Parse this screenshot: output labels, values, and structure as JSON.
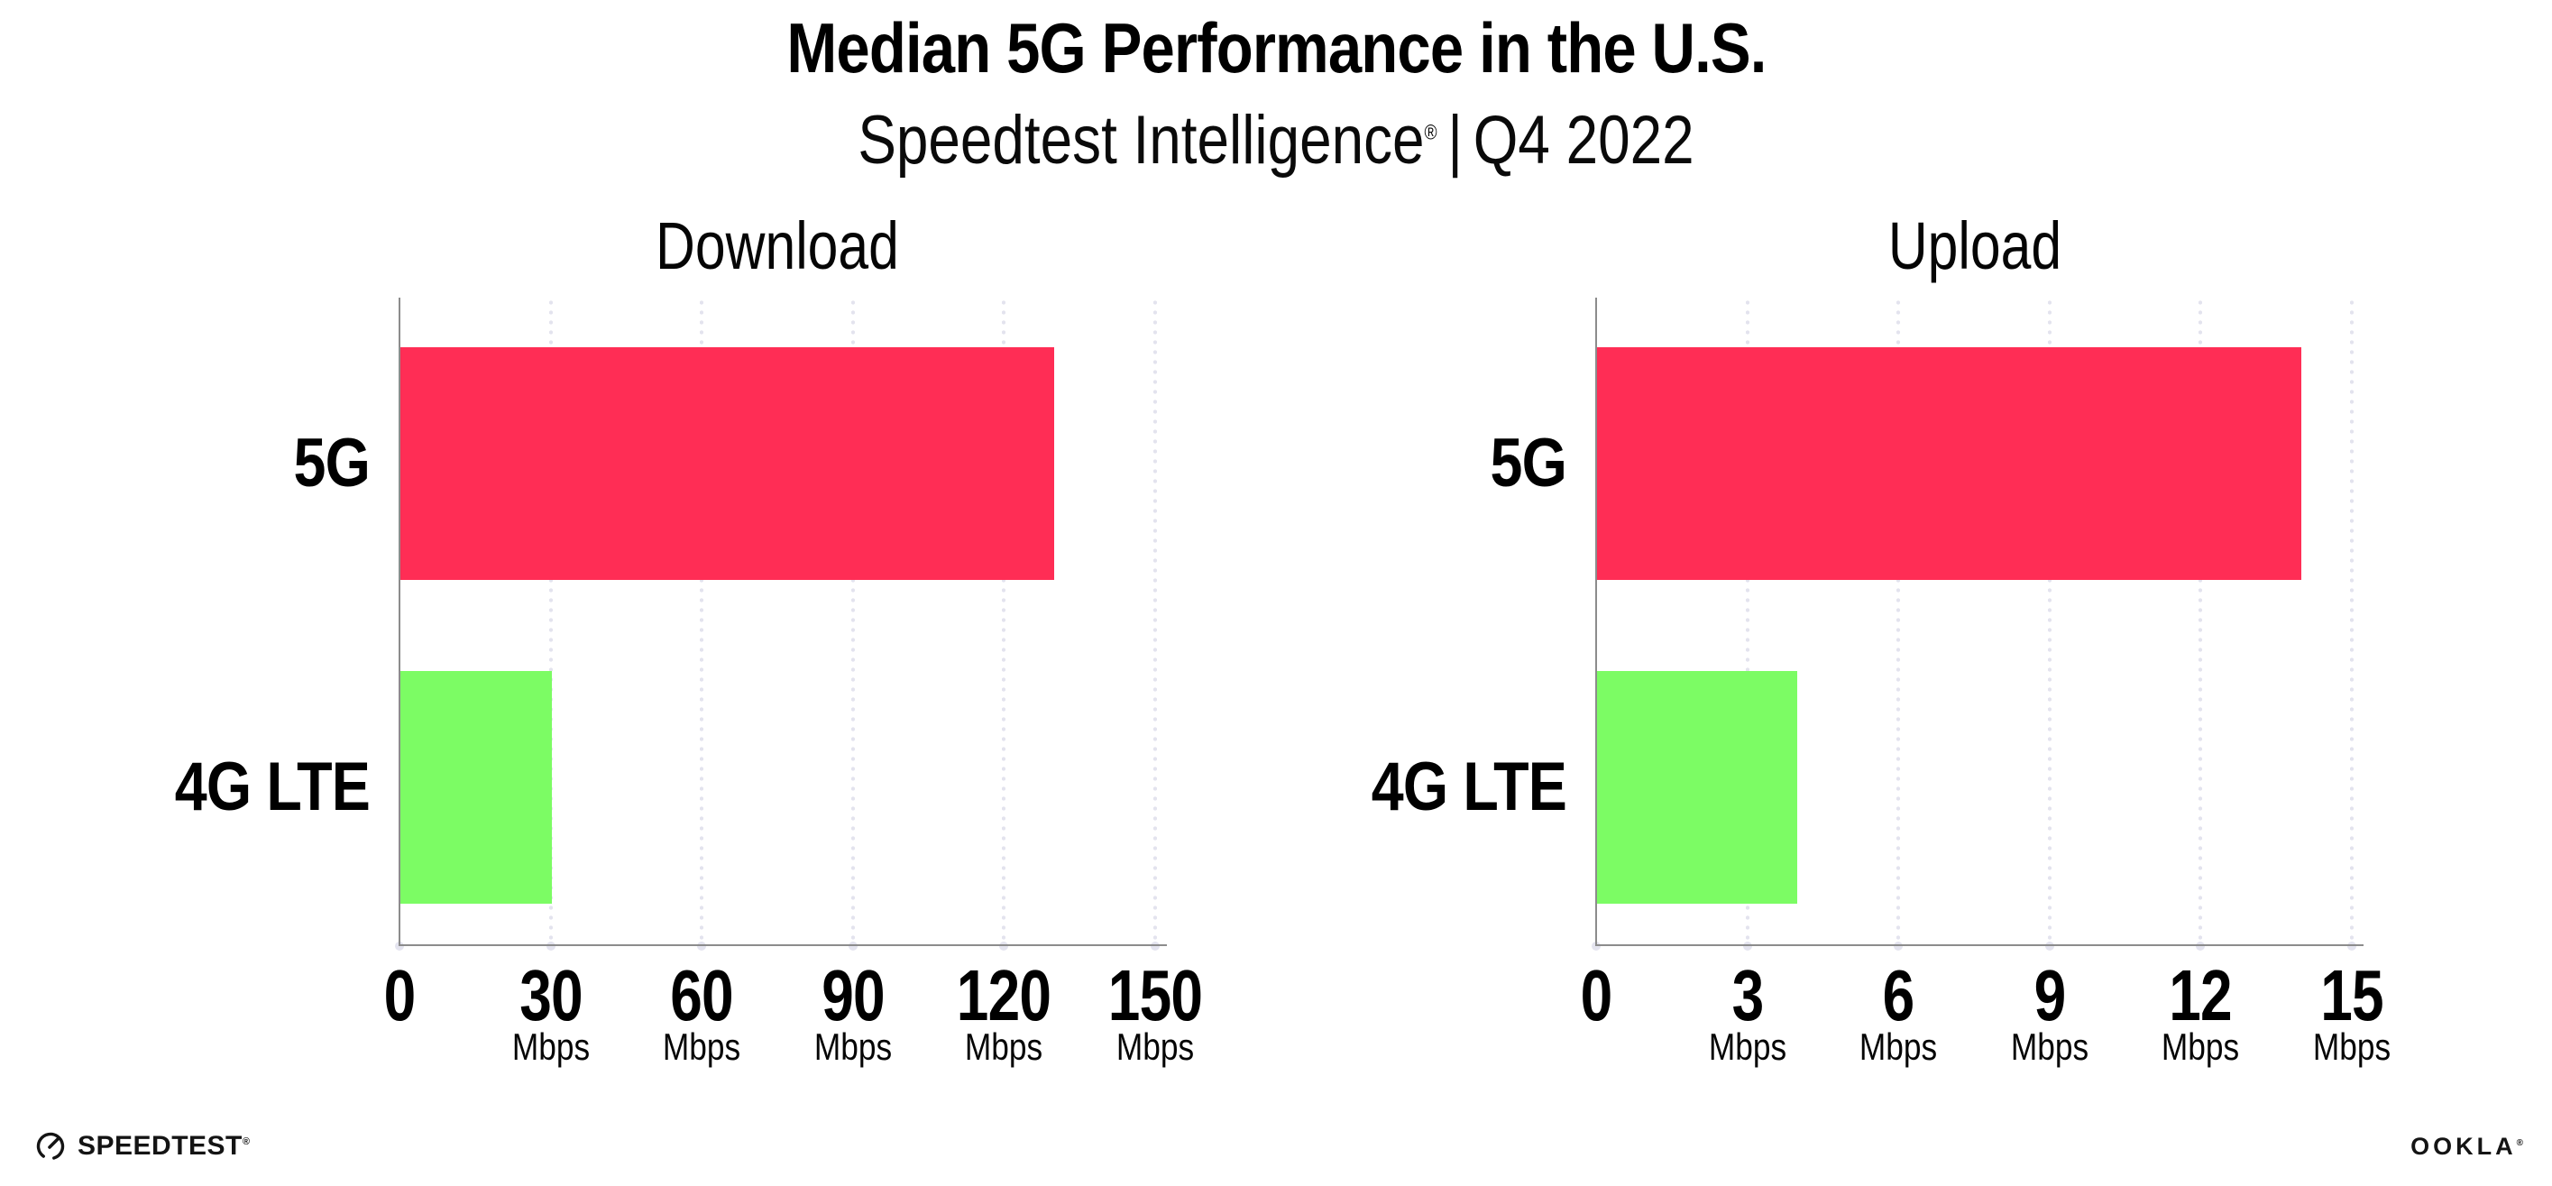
{
  "header": {
    "title": "Median 5G Performance in the U.S.",
    "subtitle_brand": "Speedtest Intelligence",
    "subtitle_reg": "®",
    "subtitle_divider": "|",
    "subtitle_period": "Q4 2022"
  },
  "chart_data": [
    {
      "type": "bar",
      "orientation": "horizontal",
      "title": "Download",
      "categories": [
        "5G",
        "4G LTE"
      ],
      "values": [
        130,
        30.3
      ],
      "unit": "Mbps",
      "xlim": [
        0,
        150
      ],
      "xticks": [
        0,
        30,
        60,
        90,
        120,
        150
      ],
      "tick_unit_label": "Mbps",
      "bar_colors": [
        "#FF2D55",
        "#7CFC64"
      ],
      "grid": "dotted-vertical",
      "legend": "none"
    },
    {
      "type": "bar",
      "orientation": "horizontal",
      "title": "Upload",
      "categories": [
        "5G",
        "4G LTE"
      ],
      "values": [
        14,
        4
      ],
      "unit": "Mbps",
      "xlim": [
        0,
        15
      ],
      "xticks": [
        0,
        3,
        6,
        9,
        12,
        15
      ],
      "tick_unit_label": "Mbps",
      "bar_colors": [
        "#FF2D55",
        "#7CFC64"
      ],
      "grid": "dotted-vertical",
      "legend": "none"
    }
  ],
  "footer": {
    "speedtest_logo_text": "SPEEDTEST",
    "speedtest_reg": "®",
    "ookla_logo_text": "OOKLA",
    "ookla_reg": "®"
  },
  "colors": {
    "bar_5g": "#FF2D55",
    "bar_4g_lte": "#7CFC64",
    "axis": "#8c8c8c",
    "grid_dot": "#e3e3ee",
    "text": "#000000",
    "background": "#ffffff"
  }
}
